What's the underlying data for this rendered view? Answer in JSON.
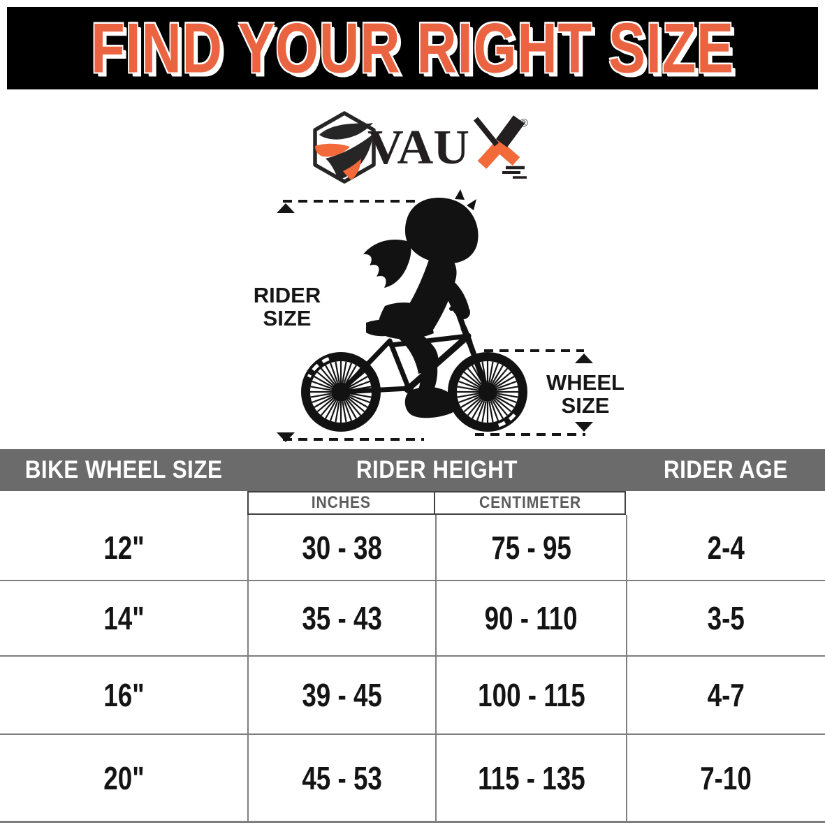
{
  "banner": {
    "title": "FIND YOUR RIGHT SIZE"
  },
  "logo": {
    "brand_text": "VAU",
    "x_letter": "X",
    "registered_mark": "®"
  },
  "diagram": {
    "rider_label_line1": "RIDER",
    "rider_label_line2": "SIZE",
    "wheel_label_line1": "WHEEL",
    "wheel_label_line2": "SIZE"
  },
  "table": {
    "headers": {
      "wheel_size": "BIKE WHEEL SIZE",
      "rider_height": "RIDER HEIGHT",
      "rider_age": "RIDER AGE"
    },
    "subheaders": {
      "inches": "INCHES",
      "centimeter": "CENTIMETER"
    },
    "rows": [
      {
        "wheel": "12\"",
        "height_in": "30 - 38",
        "height_cm": "75 - 95",
        "age": "2-4"
      },
      {
        "wheel": "14\"",
        "height_in": "35 - 43",
        "height_cm": "90 - 110",
        "age": "3-5"
      },
      {
        "wheel": "16\"",
        "height_in": "39 - 45",
        "height_cm": "100 - 115",
        "age": "4-7"
      },
      {
        "wheel": "20\"",
        "height_in": "45 - 53",
        "height_cm": "115 - 135",
        "age": "7-10"
      }
    ]
  },
  "colors": {
    "banner_orange": "#eb6442",
    "logo_orange": "#f2693a",
    "header_gray": "#6b6b6b",
    "line_gray": "#7e7e7e",
    "ink": "#141414"
  }
}
